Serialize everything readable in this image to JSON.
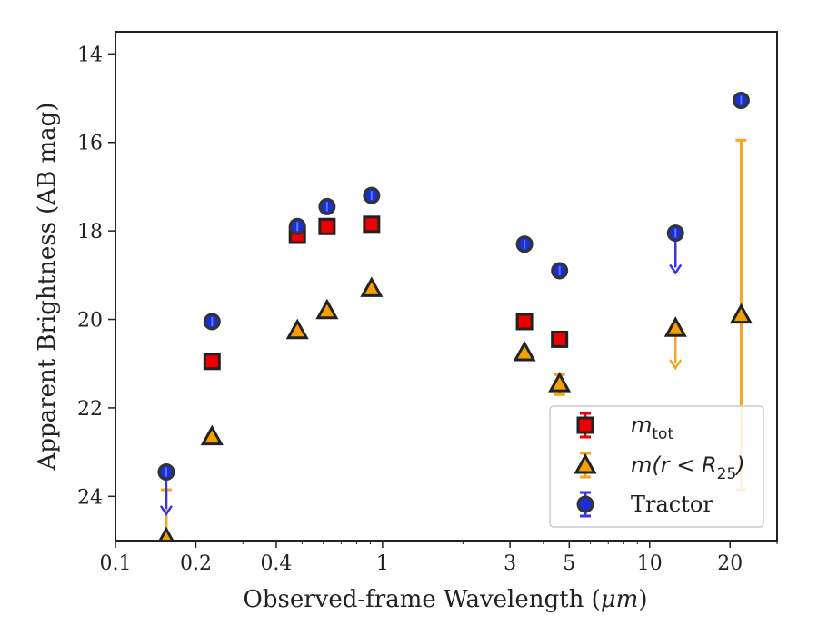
{
  "chart_data": {
    "type": "scatter",
    "xlabel_prefix": "Observed-frame Wavelength (",
    "xlabel_unit": "μm",
    "xlabel_suffix": ")",
    "ylabel": "Apparent Brightness (AB mag)",
    "x_scale": "log",
    "xlim": [
      0.1,
      30
    ],
    "ylim": [
      25,
      13.5
    ],
    "y_inverted": true,
    "x_ticks": [
      0.1,
      0.2,
      0.4,
      1,
      3,
      5,
      10,
      20
    ],
    "x_tick_labels": [
      "0.1",
      "0.2",
      "0.4",
      "1",
      "3",
      "5",
      "10",
      "20"
    ],
    "y_ticks": [
      14,
      16,
      18,
      20,
      22,
      24
    ],
    "y_tick_labels": [
      "14",
      "16",
      "18",
      "20",
      "22",
      "24"
    ],
    "grid": false,
    "legend_position": "lower-right",
    "series": [
      {
        "name": "m_tot",
        "label_main": "m",
        "label_sub": "tot",
        "marker": "square",
        "color": "#ee0000",
        "edgecolor": "#222222",
        "errcolor": "#ee0000",
        "points": [
          {
            "x": 0.23,
            "y": 20.95
          },
          {
            "x": 0.48,
            "y": 18.1
          },
          {
            "x": 0.62,
            "y": 17.9
          },
          {
            "x": 0.91,
            "y": 17.85
          },
          {
            "x": 3.4,
            "y": 20.05
          },
          {
            "x": 4.6,
            "y": 20.45
          }
        ]
      },
      {
        "name": "m(r < R_25)",
        "label_main": "m(r < R",
        "label_sub": "25",
        "label_end": ")",
        "marker": "triangle",
        "color": "#f5a000",
        "edgecolor": "#222222",
        "errcolor": "#f5a623",
        "points": [
          {
            "x": 0.155,
            "y": 24.95,
            "upper_limit": true,
            "errbar": [
              23.85,
              25.0
            ]
          },
          {
            "x": 0.23,
            "y": 22.65
          },
          {
            "x": 0.48,
            "y": 20.25
          },
          {
            "x": 0.62,
            "y": 19.8
          },
          {
            "x": 0.91,
            "y": 19.3
          },
          {
            "x": 3.4,
            "y": 20.75
          },
          {
            "x": 4.6,
            "y": 21.45,
            "errbar": [
              21.25,
              21.7
            ]
          },
          {
            "x": 12.5,
            "y": 20.2,
            "upper_limit": true,
            "arrow_to": 21.1
          },
          {
            "x": 22.0,
            "y": 19.9,
            "errbar": [
              15.95,
              23.85
            ]
          }
        ]
      },
      {
        "name": "Tractor",
        "label_main": "Tractor",
        "marker": "circle",
        "color": "#1a2fd6",
        "edgecolor": "#333333",
        "errcolor": "#3535f0",
        "points": [
          {
            "x": 0.155,
            "y": 23.45,
            "upper_limit": true,
            "arrow_to": 24.4
          },
          {
            "x": 0.23,
            "y": 20.05
          },
          {
            "x": 0.48,
            "y": 17.9
          },
          {
            "x": 0.62,
            "y": 17.45
          },
          {
            "x": 0.91,
            "y": 17.2
          },
          {
            "x": 3.4,
            "y": 18.3
          },
          {
            "x": 4.6,
            "y": 18.9
          },
          {
            "x": 12.5,
            "y": 18.05,
            "upper_limit": true,
            "arrow_to": 18.95
          },
          {
            "x": 22.0,
            "y": 15.05
          }
        ]
      }
    ]
  }
}
